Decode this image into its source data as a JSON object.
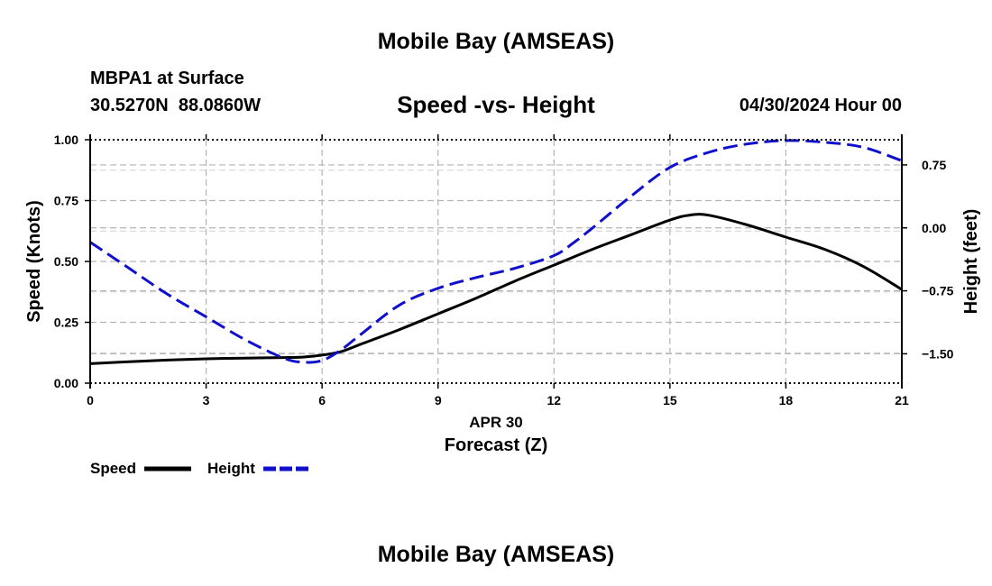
{
  "page": {
    "title": "Mobile Bay (AMSEAS)",
    "station": "MBPA1 at Surface",
    "coords": "30.5270N  88.0860W",
    "date": "04/30/2024 Hour 00",
    "footer_title": "Mobile Bay (AMSEAS)"
  },
  "chart_data": {
    "type": "line",
    "title": "Speed -vs- Height",
    "xlabel": "Forecast (Z)",
    "xdate": "APR 30",
    "ylabel_left": "Speed (Knots)",
    "ylabel_right": "Height (feet)",
    "xlim": [
      0,
      21
    ],
    "ylim_left": [
      0,
      1.0
    ],
    "ylim_right": [
      -1.85,
      1.05
    ],
    "x_ticks": [
      0,
      3,
      6,
      9,
      12,
      15,
      18,
      21
    ],
    "x_tick_labels": [
      "0",
      "3",
      "6",
      "9",
      "12",
      "15",
      "18",
      "21"
    ],
    "y_left_ticks": [
      0,
      0.25,
      0.5,
      0.75,
      1.0
    ],
    "y_left_tick_labels": [
      "0.00",
      "0.25",
      "0.50",
      "0.75",
      "1.00"
    ],
    "y_right_ticks": [
      -1.5,
      -0.75,
      0,
      0.75
    ],
    "y_right_tick_labels": [
      "−1.50",
      "−0.75",
      "0.00",
      "0.75"
    ],
    "grid": true,
    "legend_position": "bottom-left",
    "colors": {
      "speed": "#000000",
      "height": "#1010cc",
      "grid": "#b4b4b4"
    },
    "series": [
      {
        "name": "Speed",
        "axis": "left",
        "style": "solid",
        "x": [
          0,
          1,
          2,
          3,
          4,
          5,
          5.5,
          6,
          6.5,
          7,
          8,
          9,
          10,
          11,
          12,
          13,
          14,
          15,
          15.5,
          16,
          17,
          18,
          19,
          20,
          21
        ],
        "y": [
          0.08,
          0.088,
          0.095,
          0.1,
          0.103,
          0.105,
          0.107,
          0.115,
          0.13,
          0.16,
          0.22,
          0.285,
          0.35,
          0.42,
          0.485,
          0.55,
          0.61,
          0.67,
          0.69,
          0.69,
          0.65,
          0.6,
          0.55,
          0.48,
          0.385
        ]
      },
      {
        "name": "Height",
        "axis": "right",
        "style": "dashed",
        "x": [
          0,
          1,
          2,
          3,
          4,
          5,
          5.5,
          6,
          6.5,
          7,
          8,
          9,
          10,
          11,
          12,
          12.5,
          13,
          14,
          15,
          16,
          17,
          18,
          19,
          20,
          21
        ],
        "y": [
          -0.17,
          -0.48,
          -0.79,
          -1.06,
          -1.33,
          -1.55,
          -1.6,
          -1.58,
          -1.45,
          -1.27,
          -0.92,
          -0.72,
          -0.59,
          -0.48,
          -0.33,
          -0.18,
          0,
          0.38,
          0.72,
          0.9,
          1.0,
          1.04,
          1.02,
          0.96,
          0.8
        ]
      }
    ]
  }
}
